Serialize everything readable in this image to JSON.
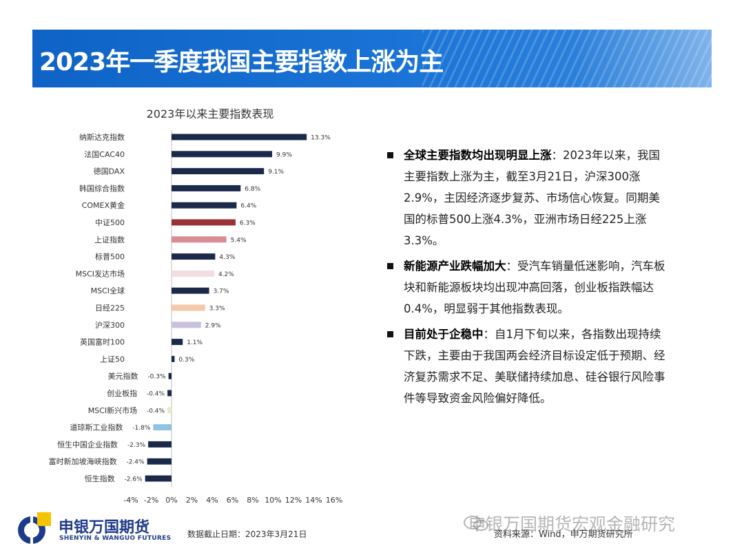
{
  "slide_title": "2023年一季度我国主要指数上涨为主",
  "chart_data": {
    "type": "bar",
    "orientation": "horizontal",
    "title": "2023年以来主要指数表现",
    "categories": [
      "纳斯达克指数",
      "法国CAC40",
      "德国DAX",
      "韩国综合指数",
      "COMEX黄金",
      "中证500",
      "上证指数",
      "标普500",
      "MSCI发达市场",
      "MSCI全球",
      "日经225",
      "沪深300",
      "英国富时100",
      "上证50",
      "美元指数",
      "创业板指",
      "MSCI新兴市场",
      "道琼斯工业指数",
      "恒生中国企业指数",
      "富时新加坡海峡指数",
      "恒生指数"
    ],
    "values": [
      13.3,
      9.9,
      9.1,
      6.8,
      6.4,
      6.3,
      5.4,
      4.3,
      4.2,
      3.7,
      3.3,
      2.9,
      1.1,
      0.3,
      -0.3,
      -0.4,
      -0.4,
      -1.8,
      -2.3,
      -2.4,
      -2.6
    ],
    "value_labels": [
      "13.3%",
      "9.9%",
      "9.1%",
      "6.8%",
      "6.4%",
      "6.3%",
      "5.4%",
      "4.3%",
      "4.2%",
      "3.7%",
      "3.3%",
      "2.9%",
      "1.1%",
      "0.3%",
      "-0.3%",
      "-0.4%",
      "-0.4%",
      "-1.8%",
      "-2.3%",
      "-2.4%",
      "-2.6%"
    ],
    "bar_colors": [
      "#1c2a4a",
      "#1c2a4a",
      "#1c2a4a",
      "#1c2a4a",
      "#1c2a4a",
      "#9b3138",
      "#d98c96",
      "#1c2a4a",
      "#f3dde2",
      "#1c2a4a",
      "#f6c9a8",
      "#c9c1dc",
      "#1c2a4a",
      "#1c2a4a",
      "#1c2a4a",
      "#1c2a4a",
      "#e5ecc4",
      "#8fc4de",
      "#1c2a4a",
      "#1c2a4a",
      "#1c2a4a"
    ],
    "xlim": [
      -4,
      16
    ],
    "xticks": [
      -4,
      -2,
      0,
      2,
      4,
      6,
      8,
      10,
      12,
      14,
      16
    ],
    "xtick_labels": [
      "-4%",
      "-2%",
      "0%",
      "2%",
      "4%",
      "6%",
      "8%",
      "10%",
      "12%",
      "14%",
      "16%"
    ],
    "grid": false
  },
  "bullets": [
    {
      "bold": "全球主要指数均出现明显上涨",
      "text": "：2023年以来，我国主要指数上涨为主，截至3月21日，沪深300涨2.9%，主因经济逐步复苏、市场信心恢复。同期美国的标普500上涨4.3%，亚洲市场日经225上涨3.3%。"
    },
    {
      "bold": "新能源产业跌幅加大",
      "text": "：受汽车销量低迷影响，汽车板块和新能源板块均出现冲高回落，创业板指跌幅达0.4%，明显弱于其他指数表现。"
    },
    {
      "bold": "目前处于企稳中",
      "text": "：自1月下旬以来，各指数出现持续下跌，主要由于我国两会经济目标设定低于预期、经济复苏需求不足、美联储持续加息、硅谷银行风险事件等导致资金风险偏好降低。"
    }
  ],
  "footer": {
    "logo_cn": "申银万国期货",
    "logo_en": "SHENYIN & WANGUO FUTURES",
    "cutoff_date": "数据截止日期：2023年3月21日",
    "source": "资料来源：Wind，申万期货研究所",
    "watermark": "申银万国期货宏观金融研究"
  },
  "colors": {
    "title_bar": "#1a73d6",
    "logo_blue": "#1e3a8a",
    "logo_yellow": "#f5c400"
  }
}
